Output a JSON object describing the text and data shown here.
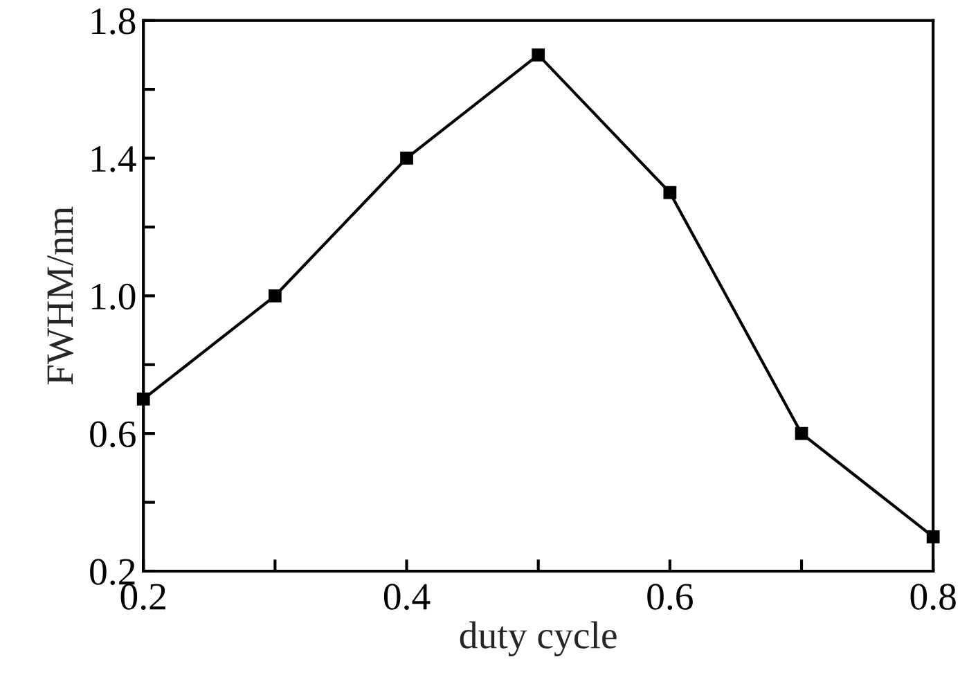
{
  "chart_data": {
    "type": "line",
    "xlabel": "duty cycle",
    "ylabel": "FWHM/nm",
    "x": [
      0.2,
      0.3,
      0.4,
      0.5,
      0.6,
      0.7,
      0.8
    ],
    "series": [
      {
        "color": "#000000",
        "values": [
          0.7,
          1.0,
          1.4,
          1.7,
          1.3,
          0.6,
          0.3
        ]
      }
    ],
    "xlim": [
      0.2,
      0.8
    ],
    "ylim": [
      0.2,
      1.8
    ],
    "xticks": [
      0.2,
      {
        "value": 0.3,
        "label": null
      },
      0.4,
      {
        "value": 0.5,
        "label": null
      },
      0.6,
      {
        "value": 0.7,
        "label": null
      },
      0.8
    ],
    "yticks": [
      0.2,
      {
        "value": 0.4,
        "label": null
      },
      0.6,
      {
        "value": 0.8,
        "label": null
      },
      "1.0",
      {
        "value": 1.2,
        "label": null
      },
      1.4,
      {
        "value": 1.6,
        "label": null
      },
      1.8
    ],
    "marker": "square",
    "line_style": "solid",
    "grid": false,
    "legend": false
  }
}
